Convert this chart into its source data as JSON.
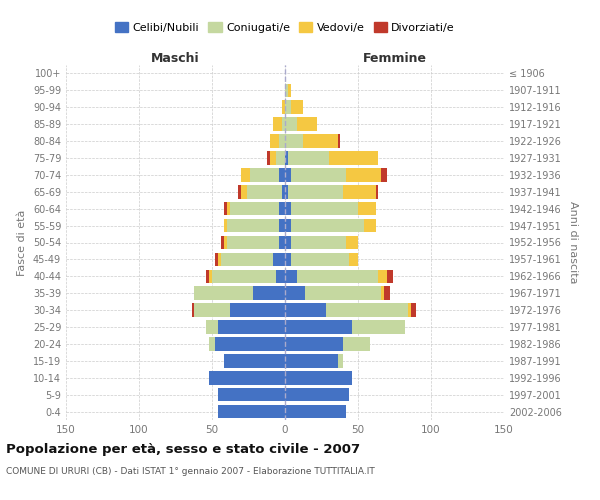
{
  "age_groups": [
    "0-4",
    "5-9",
    "10-14",
    "15-19",
    "20-24",
    "25-29",
    "30-34",
    "35-39",
    "40-44",
    "45-49",
    "50-54",
    "55-59",
    "60-64",
    "65-69",
    "70-74",
    "75-79",
    "80-84",
    "85-89",
    "90-94",
    "95-99",
    "100+"
  ],
  "birth_years": [
    "2002-2006",
    "1997-2001",
    "1992-1996",
    "1987-1991",
    "1982-1986",
    "1977-1981",
    "1972-1976",
    "1967-1971",
    "1962-1966",
    "1957-1961",
    "1952-1956",
    "1947-1951",
    "1942-1946",
    "1937-1941",
    "1932-1936",
    "1927-1931",
    "1922-1926",
    "1917-1921",
    "1912-1916",
    "1907-1911",
    "≤ 1906"
  ],
  "colors": {
    "celibi": "#4472C4",
    "coniugati": "#c5d8a0",
    "vedovi": "#f5c842",
    "divorziati": "#c0392b"
  },
  "males": {
    "celibi": [
      46,
      46,
      52,
      42,
      48,
      46,
      38,
      22,
      6,
      8,
      4,
      4,
      4,
      2,
      4,
      0,
      0,
      0,
      0,
      0,
      0
    ],
    "coniugati": [
      0,
      0,
      0,
      0,
      4,
      8,
      24,
      40,
      44,
      36,
      36,
      36,
      34,
      24,
      20,
      6,
      4,
      2,
      0,
      0,
      0
    ],
    "vedovi": [
      0,
      0,
      0,
      0,
      0,
      0,
      0,
      0,
      2,
      2,
      2,
      2,
      2,
      4,
      6,
      4,
      6,
      6,
      2,
      0,
      0
    ],
    "divorziati": [
      0,
      0,
      0,
      0,
      0,
      0,
      2,
      0,
      2,
      2,
      2,
      0,
      2,
      2,
      0,
      2,
      0,
      0,
      0,
      0,
      0
    ]
  },
  "females": {
    "nubili": [
      42,
      44,
      46,
      36,
      40,
      46,
      28,
      14,
      8,
      4,
      4,
      4,
      4,
      2,
      4,
      2,
      0,
      0,
      0,
      0,
      0
    ],
    "coniugati": [
      0,
      0,
      0,
      4,
      18,
      36,
      56,
      52,
      56,
      40,
      38,
      50,
      46,
      38,
      38,
      28,
      12,
      8,
      4,
      2,
      0
    ],
    "vedovi": [
      0,
      0,
      0,
      0,
      0,
      0,
      2,
      2,
      6,
      6,
      8,
      8,
      12,
      22,
      24,
      34,
      24,
      14,
      8,
      2,
      0
    ],
    "divorziati": [
      0,
      0,
      0,
      0,
      0,
      0,
      4,
      4,
      4,
      0,
      0,
      0,
      0,
      2,
      4,
      0,
      2,
      0,
      0,
      0,
      0
    ]
  },
  "xlim": 150,
  "title": "Popolazione per età, sesso e stato civile - 2007",
  "subtitle": "COMUNE DI URURI (CB) - Dati ISTAT 1° gennaio 2007 - Elaborazione TUTTITALIA.IT",
  "ylabel_left": "Fasce di età",
  "ylabel_right": "Anni di nascita",
  "xlabel_maschi": "Maschi",
  "xlabel_femmine": "Femmine",
  "bg_color": "#ffffff",
  "grid_color": "#cccccc",
  "center_line_color": "#aaaacc",
  "tick_color": "#777777"
}
